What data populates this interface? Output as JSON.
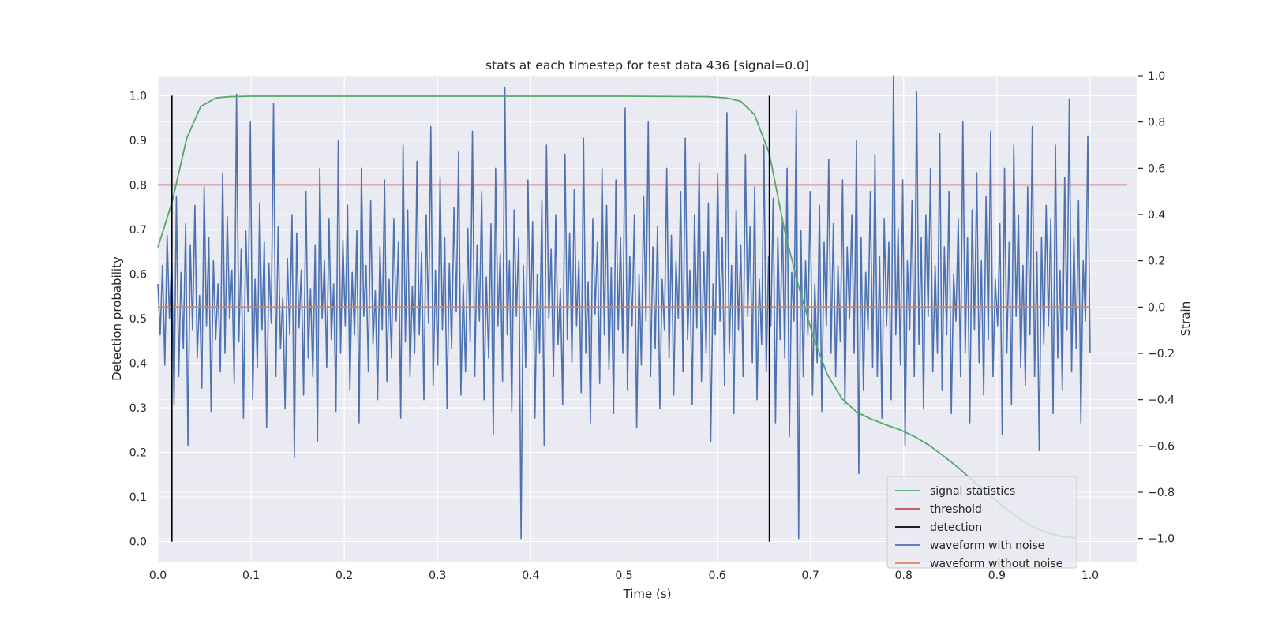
{
  "chart_data": {
    "type": "line",
    "title": "stats at each timestep for test data 436 [signal=0.0]",
    "xlabel": "Time (s)",
    "ylabel": "Detection probability",
    "y2label": "Strain",
    "xlim": [
      0.0,
      1.05
    ],
    "ylim": [
      -0.045,
      1.045
    ],
    "y2lim": [
      -1.1,
      1.0
    ],
    "xticks": [
      "0.0",
      "0.1",
      "0.2",
      "0.3",
      "0.4",
      "0.5",
      "0.6",
      "0.7",
      "0.8",
      "0.9",
      "1.0"
    ],
    "yticks": [
      "0.0",
      "0.1",
      "0.2",
      "0.3",
      "0.4",
      "0.5",
      "0.6",
      "0.7",
      "0.8",
      "0.9",
      "1.0"
    ],
    "y2ticks": [
      "−1.0",
      "−0.8",
      "−0.6",
      "−0.4",
      "−0.2",
      "0.0",
      "0.2",
      "0.4",
      "0.6",
      "0.8",
      "1.0"
    ],
    "grid": true,
    "legend_position": "lower-right",
    "colors": {
      "signal_statistics": "#55a868",
      "threshold": "#c44e52",
      "detection": "#000000",
      "waveform_with_noise": "#4c72b0",
      "waveform_without_noise": "#dd8452",
      "background": "#eaeaf2",
      "grid": "#ffffff"
    },
    "series": [
      {
        "name": "signal statistics",
        "axis": "left",
        "x": [
          0.0,
          0.015,
          0.031,
          0.046,
          0.062,
          0.077,
          0.1,
          0.2,
          0.3,
          0.4,
          0.5,
          0.59,
          0.61,
          0.625,
          0.64,
          0.656,
          0.672,
          0.687,
          0.703,
          0.718,
          0.734,
          0.75,
          0.765,
          0.781,
          0.797,
          0.812,
          0.828,
          0.844,
          0.859,
          0.875,
          0.89,
          0.906,
          0.922,
          0.937,
          0.953,
          0.968,
          0.984
        ],
        "y": [
          0.66,
          0.76,
          0.905,
          0.976,
          0.995,
          0.998,
          0.999,
          0.999,
          0.999,
          0.999,
          0.999,
          0.998,
          0.995,
          0.988,
          0.958,
          0.87,
          0.7,
          0.575,
          0.46,
          0.375,
          0.32,
          0.29,
          0.275,
          0.262,
          0.25,
          0.235,
          0.215,
          0.19,
          0.165,
          0.135,
          0.108,
          0.08,
          0.055,
          0.035,
          0.02,
          0.012,
          0.008
        ]
      },
      {
        "name": "threshold",
        "axis": "left",
        "x": [
          0.0,
          1.04
        ],
        "y": [
          0.8,
          0.8
        ]
      },
      {
        "name": "detection",
        "axis": "left",
        "x": [
          0.015,
          0.656
        ],
        "y": [
          1.0,
          1.0
        ]
      },
      {
        "name": "waveform with noise",
        "axis": "right",
        "x_range": [
          0.0,
          1.0
        ],
        "y": [
          0.1,
          -0.12,
          0.18,
          -0.25,
          0.31,
          -0.05,
          0.22,
          -0.42,
          0.48,
          -0.3,
          0.15,
          -0.18,
          0.36,
          -0.6,
          0.27,
          -0.1,
          0.44,
          -0.22,
          0.05,
          -0.35,
          0.52,
          -0.08,
          0.3,
          -0.45,
          0.2,
          -0.14,
          0.1,
          -0.28,
          0.58,
          -0.2,
          0.39,
          -0.05,
          0.16,
          -0.33,
          0.92,
          -0.15,
          0.25,
          -0.48,
          0.33,
          -0.02,
          0.8,
          -0.4,
          0.12,
          -0.26,
          0.45,
          -0.1,
          0.28,
          -0.52,
          0.19,
          -0.07,
          0.88,
          -0.3,
          0.35,
          -0.18,
          0.04,
          -0.44,
          0.21,
          -0.12,
          0.4,
          -0.65,
          0.32,
          -0.09,
          0.16,
          -0.38,
          0.5,
          -0.22,
          0.08,
          -0.3,
          0.27,
          -0.58,
          0.6,
          -0.05,
          0.2,
          -0.26,
          0.38,
          -0.14,
          0.1,
          -0.45,
          0.72,
          -0.2,
          0.29,
          -0.08,
          0.44,
          -0.36,
          0.15,
          -0.12,
          0.33,
          -0.5,
          0.6,
          -0.04,
          0.18,
          -0.28,
          0.46,
          -0.16,
          0.07,
          -0.4,
          0.26,
          -0.1,
          0.55,
          -0.32,
          0.12,
          -0.22,
          0.38,
          -0.06,
          0.28,
          -0.48,
          0.7,
          -0.15,
          0.42,
          -0.3,
          0.09,
          -0.2,
          0.63,
          -0.12,
          0.24,
          -0.4,
          0.4,
          -0.07,
          0.78,
          -0.34,
          0.16,
          -0.25,
          0.56,
          -0.1,
          0.3,
          -0.44,
          0.19,
          -0.18,
          0.43,
          -0.02,
          0.67,
          -0.38,
          0.1,
          -0.28,
          0.34,
          -0.15,
          0.76,
          -0.3,
          0.27,
          -0.06,
          0.5,
          -0.4,
          0.13,
          -0.22,
          0.36,
          -0.55,
          0.6,
          -0.08,
          0.23,
          -0.32,
          0.95,
          -0.12,
          0.2,
          -0.45,
          0.42,
          -0.04,
          0.3,
          -1.0,
          0.18,
          -0.26,
          0.55,
          -0.1,
          0.37,
          -0.48,
          0.14,
          -0.2,
          0.46,
          -0.6,
          0.7,
          -0.05,
          0.25,
          -0.3,
          0.4,
          -0.16,
          0.08,
          -0.42,
          0.66,
          -0.14,
          0.32,
          -0.24,
          0.51,
          -0.08,
          0.2,
          -0.37,
          0.73,
          -0.2,
          0.11,
          -0.5,
          0.38,
          -0.03,
          0.28,
          -0.33,
          0.6,
          -0.12,
          0.44,
          -0.27,
          0.17,
          -0.46,
          0.55,
          -0.1,
          0.3,
          -0.2,
          0.86,
          -0.36,
          0.22,
          -0.08,
          0.4,
          -0.52,
          0.14,
          -0.25,
          0.48,
          -0.06,
          0.8,
          -0.3,
          0.26,
          -0.18,
          0.35,
          -0.44,
          0.12,
          -0.1,
          0.6,
          -0.22,
          0.31,
          -0.38,
          0.2,
          -0.05,
          0.5,
          -0.28,
          0.73,
          -0.14,
          0.16,
          -0.42,
          0.4,
          -0.09,
          0.62,
          -0.32,
          0.24,
          -0.2,
          0.45,
          -0.58,
          0.1,
          -0.12,
          0.58,
          -0.06,
          0.3,
          -0.34,
          0.84,
          -0.2,
          0.18,
          -0.46,
          0.42,
          -0.1,
          0.27,
          -0.3,
          0.66,
          -0.04,
          0.35,
          -0.24,
          0.52,
          -0.4,
          0.12,
          -0.16,
          0.7,
          -0.28,
          0.22,
          -0.08,
          0.47,
          -0.5,
          0.3,
          -0.14,
          0.38,
          -0.22,
          0.6,
          -0.56,
          0.15,
          -0.06,
          0.85,
          -1.0,
          0.33,
          -0.3,
          0.2,
          -0.12,
          0.5,
          -0.38,
          0.1,
          -0.24,
          0.44,
          -0.45,
          0.28,
          -0.08,
          0.64,
          -0.2,
          0.36,
          -0.3,
          0.18,
          -0.15,
          0.55,
          -0.42,
          0.26,
          -0.05,
          0.4,
          -0.2,
          0.72,
          -0.72,
          0.3,
          -0.36,
          0.15,
          -0.1,
          0.5,
          -0.26,
          0.66,
          -0.3,
          0.22,
          -0.48,
          0.38,
          -0.08,
          0.28,
          -0.4,
          1.0,
          -0.12,
          0.34,
          -0.25,
          0.55,
          -0.6,
          0.2,
          -0.1,
          0.46,
          -0.3,
          0.93,
          -0.16,
          0.3,
          -0.44,
          0.4,
          -0.04,
          0.6,
          -0.28,
          0.18,
          -0.2,
          0.75,
          -0.36,
          0.26,
          -0.12,
          0.5,
          -0.46,
          0.14,
          -0.06,
          0.38,
          -0.3,
          0.8,
          -0.2,
          0.3,
          -0.5,
          0.42,
          -0.1,
          0.58,
          -0.24,
          0.2,
          -0.38,
          0.48,
          -0.14,
          0.76,
          -0.3,
          0.12,
          -0.08,
          0.36,
          -0.55,
          0.6,
          -0.2,
          0.28,
          -0.42,
          0.7,
          -0.04,
          0.4,
          -0.26,
          0.18,
          -0.34,
          0.52,
          -0.12,
          0.78,
          -0.3,
          0.24,
          -0.62,
          0.3,
          -0.16,
          0.44,
          -0.08,
          0.38,
          -0.46,
          0.7,
          -0.22,
          0.16,
          -0.36,
          0.56,
          -0.1,
          0.9,
          -0.28,
          0.3,
          -0.18,
          0.46,
          -0.5,
          0.2,
          -0.06,
          0.74,
          -0.2
        ]
      },
      {
        "name": "waveform without noise",
        "axis": "right",
        "x": [
          0.0,
          1.0
        ],
        "y": [
          0.0,
          0.0
        ]
      }
    ]
  }
}
